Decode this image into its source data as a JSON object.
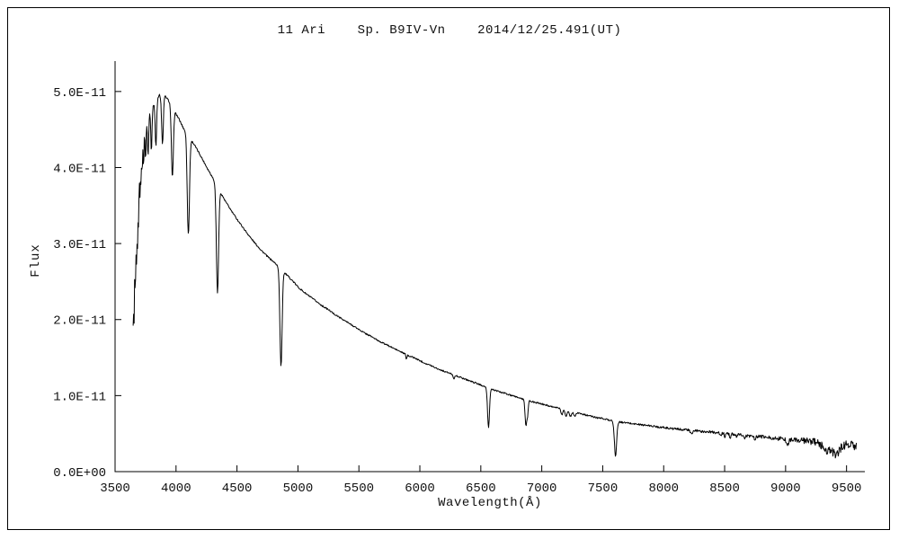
{
  "chart_data": {
    "type": "line",
    "title": "11 Ari    Sp. B9IV-Vn    2014/12/25.491(UT)",
    "xlabel": "Wavelength(Å)",
    "ylabel": "Flux",
    "grid": false,
    "line_color": "#000000",
    "background_color": "#ffffff",
    "x_range": [
      3500,
      9650
    ],
    "y_range_e11": [
      0,
      5.4
    ],
    "x_ticks": [
      {
        "value": 3500,
        "label": "3500"
      },
      {
        "value": 4000,
        "label": "4000"
      },
      {
        "value": 4500,
        "label": "4500"
      },
      {
        "value": 5000,
        "label": "5000"
      },
      {
        "value": 5500,
        "label": "5500"
      },
      {
        "value": 6000,
        "label": "6000"
      },
      {
        "value": 6500,
        "label": "6500"
      },
      {
        "value": 7000,
        "label": "7000"
      },
      {
        "value": 7500,
        "label": "7500"
      },
      {
        "value": 8000,
        "label": "8000"
      },
      {
        "value": 8500,
        "label": "8500"
      },
      {
        "value": 9000,
        "label": "9000"
      },
      {
        "value": 9500,
        "label": "9500"
      }
    ],
    "y_ticks": [
      {
        "value": 0,
        "label": "0.0E+00"
      },
      {
        "value": 1,
        "label": "1.0E-11"
      },
      {
        "value": 2,
        "label": "2.0E-11"
      },
      {
        "value": 3,
        "label": "3.0E-11"
      },
      {
        "value": 4,
        "label": "4.0E-11"
      },
      {
        "value": 5,
        "label": "5.0E-11"
      }
    ],
    "spectrum": {
      "x_start": 3648,
      "x_end": 9580,
      "sample_step_angstrom": 4,
      "flux_scale": "values in units of 1e-11, matching y-axis tick values",
      "continuum_e11": [
        [
          3648,
          1.9
        ],
        [
          3660,
          2.85
        ],
        [
          3672,
          3.1
        ],
        [
          3686,
          3.3
        ],
        [
          3700,
          3.9
        ],
        [
          3712,
          4.15
        ],
        [
          3724,
          4.35
        ],
        [
          3740,
          4.5
        ],
        [
          3760,
          4.6
        ],
        [
          3780,
          4.7
        ],
        [
          3800,
          4.78
        ],
        [
          3830,
          4.87
        ],
        [
          3860,
          4.95
        ],
        [
          3900,
          4.96
        ],
        [
          3940,
          4.88
        ],
        [
          3980,
          4.76
        ],
        [
          4020,
          4.65
        ],
        [
          4060,
          4.52
        ],
        [
          4100,
          4.42
        ],
        [
          4150,
          4.3
        ],
        [
          4200,
          4.16
        ],
        [
          4250,
          4.01
        ],
        [
          4300,
          3.87
        ],
        [
          4350,
          3.72
        ],
        [
          4400,
          3.57
        ],
        [
          4450,
          3.44
        ],
        [
          4500,
          3.32
        ],
        [
          4550,
          3.21
        ],
        [
          4600,
          3.1
        ],
        [
          4650,
          3.0
        ],
        [
          4700,
          2.91
        ],
        [
          4750,
          2.83
        ],
        [
          4800,
          2.76
        ],
        [
          4861,
          2.67
        ],
        [
          4900,
          2.6
        ],
        [
          4950,
          2.52
        ],
        [
          5000,
          2.43
        ],
        [
          5050,
          2.36
        ],
        [
          5100,
          2.3
        ],
        [
          5150,
          2.24
        ],
        [
          5200,
          2.18
        ],
        [
          5250,
          2.13
        ],
        [
          5300,
          2.07
        ],
        [
          5350,
          2.02
        ],
        [
          5400,
          1.97
        ],
        [
          5450,
          1.92
        ],
        [
          5500,
          1.87
        ],
        [
          5550,
          1.82
        ],
        [
          5600,
          1.78
        ],
        [
          5650,
          1.73
        ],
        [
          5700,
          1.69
        ],
        [
          5750,
          1.65
        ],
        [
          5800,
          1.61
        ],
        [
          5850,
          1.57
        ],
        [
          5900,
          1.53
        ],
        [
          5950,
          1.5
        ],
        [
          6000,
          1.46
        ],
        [
          6050,
          1.42
        ],
        [
          6100,
          1.39
        ],
        [
          6150,
          1.35
        ],
        [
          6200,
          1.32
        ],
        [
          6250,
          1.29
        ],
        [
          6300,
          1.26
        ],
        [
          6350,
          1.23
        ],
        [
          6400,
          1.2
        ],
        [
          6450,
          1.17
        ],
        [
          6500,
          1.14
        ],
        [
          6563,
          1.1
        ],
        [
          6600,
          1.08
        ],
        [
          6650,
          1.05
        ],
        [
          6700,
          1.03
        ],
        [
          6750,
          1.0
        ],
        [
          6800,
          0.98
        ],
        [
          6850,
          0.95
        ],
        [
          6900,
          0.93
        ],
        [
          6950,
          0.91
        ],
        [
          7000,
          0.89
        ],
        [
          7050,
          0.87
        ],
        [
          7100,
          0.85
        ],
        [
          7150,
          0.83
        ],
        [
          7200,
          0.81
        ],
        [
          7250,
          0.79
        ],
        [
          7300,
          0.77
        ],
        [
          7350,
          0.75
        ],
        [
          7400,
          0.73
        ],
        [
          7450,
          0.71
        ],
        [
          7500,
          0.7
        ],
        [
          7550,
          0.68
        ],
        [
          7600,
          0.66
        ],
        [
          7650,
          0.65
        ],
        [
          7700,
          0.64
        ],
        [
          7750,
          0.63
        ],
        [
          7800,
          0.62
        ],
        [
          7850,
          0.61
        ],
        [
          7900,
          0.6
        ],
        [
          7950,
          0.59
        ],
        [
          8000,
          0.58
        ],
        [
          8100,
          0.56
        ],
        [
          8200,
          0.55
        ],
        [
          8300,
          0.53
        ],
        [
          8400,
          0.52
        ],
        [
          8500,
          0.5
        ],
        [
          8600,
          0.49
        ],
        [
          8700,
          0.47
        ],
        [
          8800,
          0.46
        ],
        [
          8900,
          0.44
        ],
        [
          9000,
          0.43
        ],
        [
          9100,
          0.41
        ],
        [
          9200,
          0.4
        ],
        [
          9300,
          0.38
        ],
        [
          9400,
          0.37
        ],
        [
          9500,
          0.35
        ],
        [
          9580,
          0.34
        ]
      ],
      "absorption_lines": [
        {
          "center": 3656,
          "depth_e11": 0.6,
          "sigma": 2.2
        },
        {
          "center": 3663,
          "depth_e11": 0.55,
          "sigma": 2.2
        },
        {
          "center": 3669,
          "depth_e11": 0.5,
          "sigma": 2.2
        },
        {
          "center": 3676,
          "depth_e11": 0.45,
          "sigma": 2.2
        },
        {
          "center": 3683,
          "depth_e11": 0.4,
          "sigma": 2.2
        },
        {
          "center": 3692,
          "depth_e11": 0.35,
          "sigma": 2.5
        },
        {
          "center": 3704,
          "depth_e11": 0.35,
          "sigma": 2.8
        },
        {
          "center": 3712,
          "depth_e11": 0.35,
          "sigma": 3.0
        },
        {
          "center": 3722,
          "depth_e11": 0.38,
          "sigma": 3.2
        },
        {
          "center": 3734,
          "depth_e11": 0.42,
          "sigma": 3.5
        },
        {
          "center": 3750,
          "depth_e11": 0.45,
          "sigma": 4.0
        },
        {
          "center": 3771,
          "depth_e11": 0.5,
          "sigma": 4.5
        },
        {
          "center": 3798,
          "depth_e11": 0.55,
          "sigma": 5.0
        },
        {
          "center": 3835,
          "depth_e11": 0.6,
          "sigma": 6.0
        },
        {
          "center": 3889,
          "depth_e11": 0.65,
          "sigma": 7.0
        },
        {
          "center": 3970,
          "depth_e11": 0.92,
          "sigma": 8.0
        },
        {
          "center": 4101,
          "depth_e11": 1.3,
          "sigma": 9.0
        },
        {
          "center": 4340,
          "depth_e11": 1.4,
          "sigma": 9.0
        },
        {
          "center": 4861,
          "depth_e11": 1.28,
          "sigma": 9.0
        },
        {
          "center": 5890,
          "depth_e11": 0.06,
          "sigma": 4.0
        },
        {
          "center": 6280,
          "depth_e11": 0.05,
          "sigma": 6.0
        },
        {
          "center": 6563,
          "depth_e11": 0.52,
          "sigma": 8.0
        },
        {
          "center": 6870,
          "depth_e11": 0.33,
          "sigma": 7.0
        },
        {
          "center": 6884,
          "depth_e11": 0.18,
          "sigma": 5.0
        },
        {
          "center": 7165,
          "depth_e11": 0.07,
          "sigma": 8.0
        },
        {
          "center": 7200,
          "depth_e11": 0.08,
          "sigma": 8.0
        },
        {
          "center": 7235,
          "depth_e11": 0.07,
          "sigma": 8.0
        },
        {
          "center": 7270,
          "depth_e11": 0.05,
          "sigma": 8.0
        },
        {
          "center": 7605,
          "depth_e11": 0.46,
          "sigma": 9.0
        },
        {
          "center": 8227,
          "depth_e11": 0.05,
          "sigma": 10.0
        },
        {
          "center": 8467,
          "depth_e11": 0.04,
          "sigma": 5.0
        },
        {
          "center": 8502,
          "depth_e11": 0.04,
          "sigma": 5.0
        },
        {
          "center": 8545,
          "depth_e11": 0.05,
          "sigma": 5.0
        },
        {
          "center": 8598,
          "depth_e11": 0.05,
          "sigma": 5.0
        },
        {
          "center": 8665,
          "depth_e11": 0.06,
          "sigma": 5.0
        },
        {
          "center": 8750,
          "depth_e11": 0.05,
          "sigma": 6.0
        },
        {
          "center": 9015,
          "depth_e11": 0.06,
          "sigma": 10.0
        },
        {
          "center": 9350,
          "depth_e11": 0.1,
          "sigma": 40.0
        },
        {
          "center": 9420,
          "depth_e11": 0.12,
          "sigma": 25.0
        }
      ],
      "noise_amplitude_e11": [
        [
          3648,
          0.04
        ],
        [
          3720,
          0.02
        ],
        [
          3800,
          0.014
        ],
        [
          4000,
          0.012
        ],
        [
          4500,
          0.01
        ],
        [
          5000,
          0.01
        ],
        [
          6000,
          0.009
        ],
        [
          7000,
          0.01
        ],
        [
          7600,
          0.011
        ],
        [
          8000,
          0.014
        ],
        [
          8500,
          0.018
        ],
        [
          8900,
          0.025
        ],
        [
          9150,
          0.04
        ],
        [
          9350,
          0.055
        ],
        [
          9580,
          0.06
        ]
      ]
    }
  }
}
